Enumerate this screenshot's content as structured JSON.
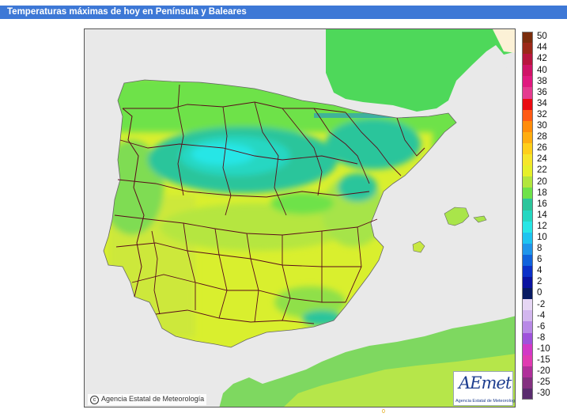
{
  "title": "Temperaturas máximas de hoy en Península y Baleares",
  "map": {
    "region": "Península y Baleares",
    "copyright": "Agencia Estatal de Meteorología",
    "logo_word": "AEmet",
    "logo_subtitle": "Agencia Estatal de Meteorología",
    "colors": {
      "sea": "#e9e9e9",
      "foreign_land": "#fcf1d6",
      "borders": "#5a0a1a"
    }
  },
  "legend": {
    "items": [
      {
        "label": "50",
        "color": "#7a2c0c"
      },
      {
        "label": "44",
        "color": "#9b2818"
      },
      {
        "label": "42",
        "color": "#b8153f"
      },
      {
        "label": "40",
        "color": "#cf1367"
      },
      {
        "label": "38",
        "color": "#e0197f"
      },
      {
        "label": "36",
        "color": "#e43b8f"
      },
      {
        "label": "34",
        "color": "#ea0b12"
      },
      {
        "label": "32",
        "color": "#ff5a14"
      },
      {
        "label": "30",
        "color": "#ff8c0a"
      },
      {
        "label": "28",
        "color": "#ffad10"
      },
      {
        "label": "26",
        "color": "#ffcf1a"
      },
      {
        "label": "24",
        "color": "#f6e62a"
      },
      {
        "label": "22",
        "color": "#e6f02a"
      },
      {
        "label": "20",
        "color": "#b2e63e"
      },
      {
        "label": "18",
        "color": "#6ee24a"
      },
      {
        "label": "16",
        "color": "#2cc59b"
      },
      {
        "label": "14",
        "color": "#25d7c2"
      },
      {
        "label": "12",
        "color": "#28e6e6"
      },
      {
        "label": "10",
        "color": "#1ec4f0"
      },
      {
        "label": "8",
        "color": "#1f95ea"
      },
      {
        "label": "6",
        "color": "#1062dc"
      },
      {
        "label": "4",
        "color": "#0b30c8"
      },
      {
        "label": "2",
        "color": "#0a13a0"
      },
      {
        "label": "0",
        "color": "#081a63"
      },
      {
        "label": "-2",
        "color": "#e6d6f4"
      },
      {
        "label": "-4",
        "color": "#d2b6ee"
      },
      {
        "label": "-6",
        "color": "#b889e6"
      },
      {
        "label": "-8",
        "color": "#9f52db"
      },
      {
        "label": "-10",
        "color": "#d238c6"
      },
      {
        "label": "-15",
        "color": "#e03ab1"
      },
      {
        "label": "-20",
        "color": "#b02f9a"
      },
      {
        "label": "-25",
        "color": "#843080"
      },
      {
        "label": "-30",
        "color": "#5a2c6e"
      }
    ]
  },
  "footer_mark": "0"
}
